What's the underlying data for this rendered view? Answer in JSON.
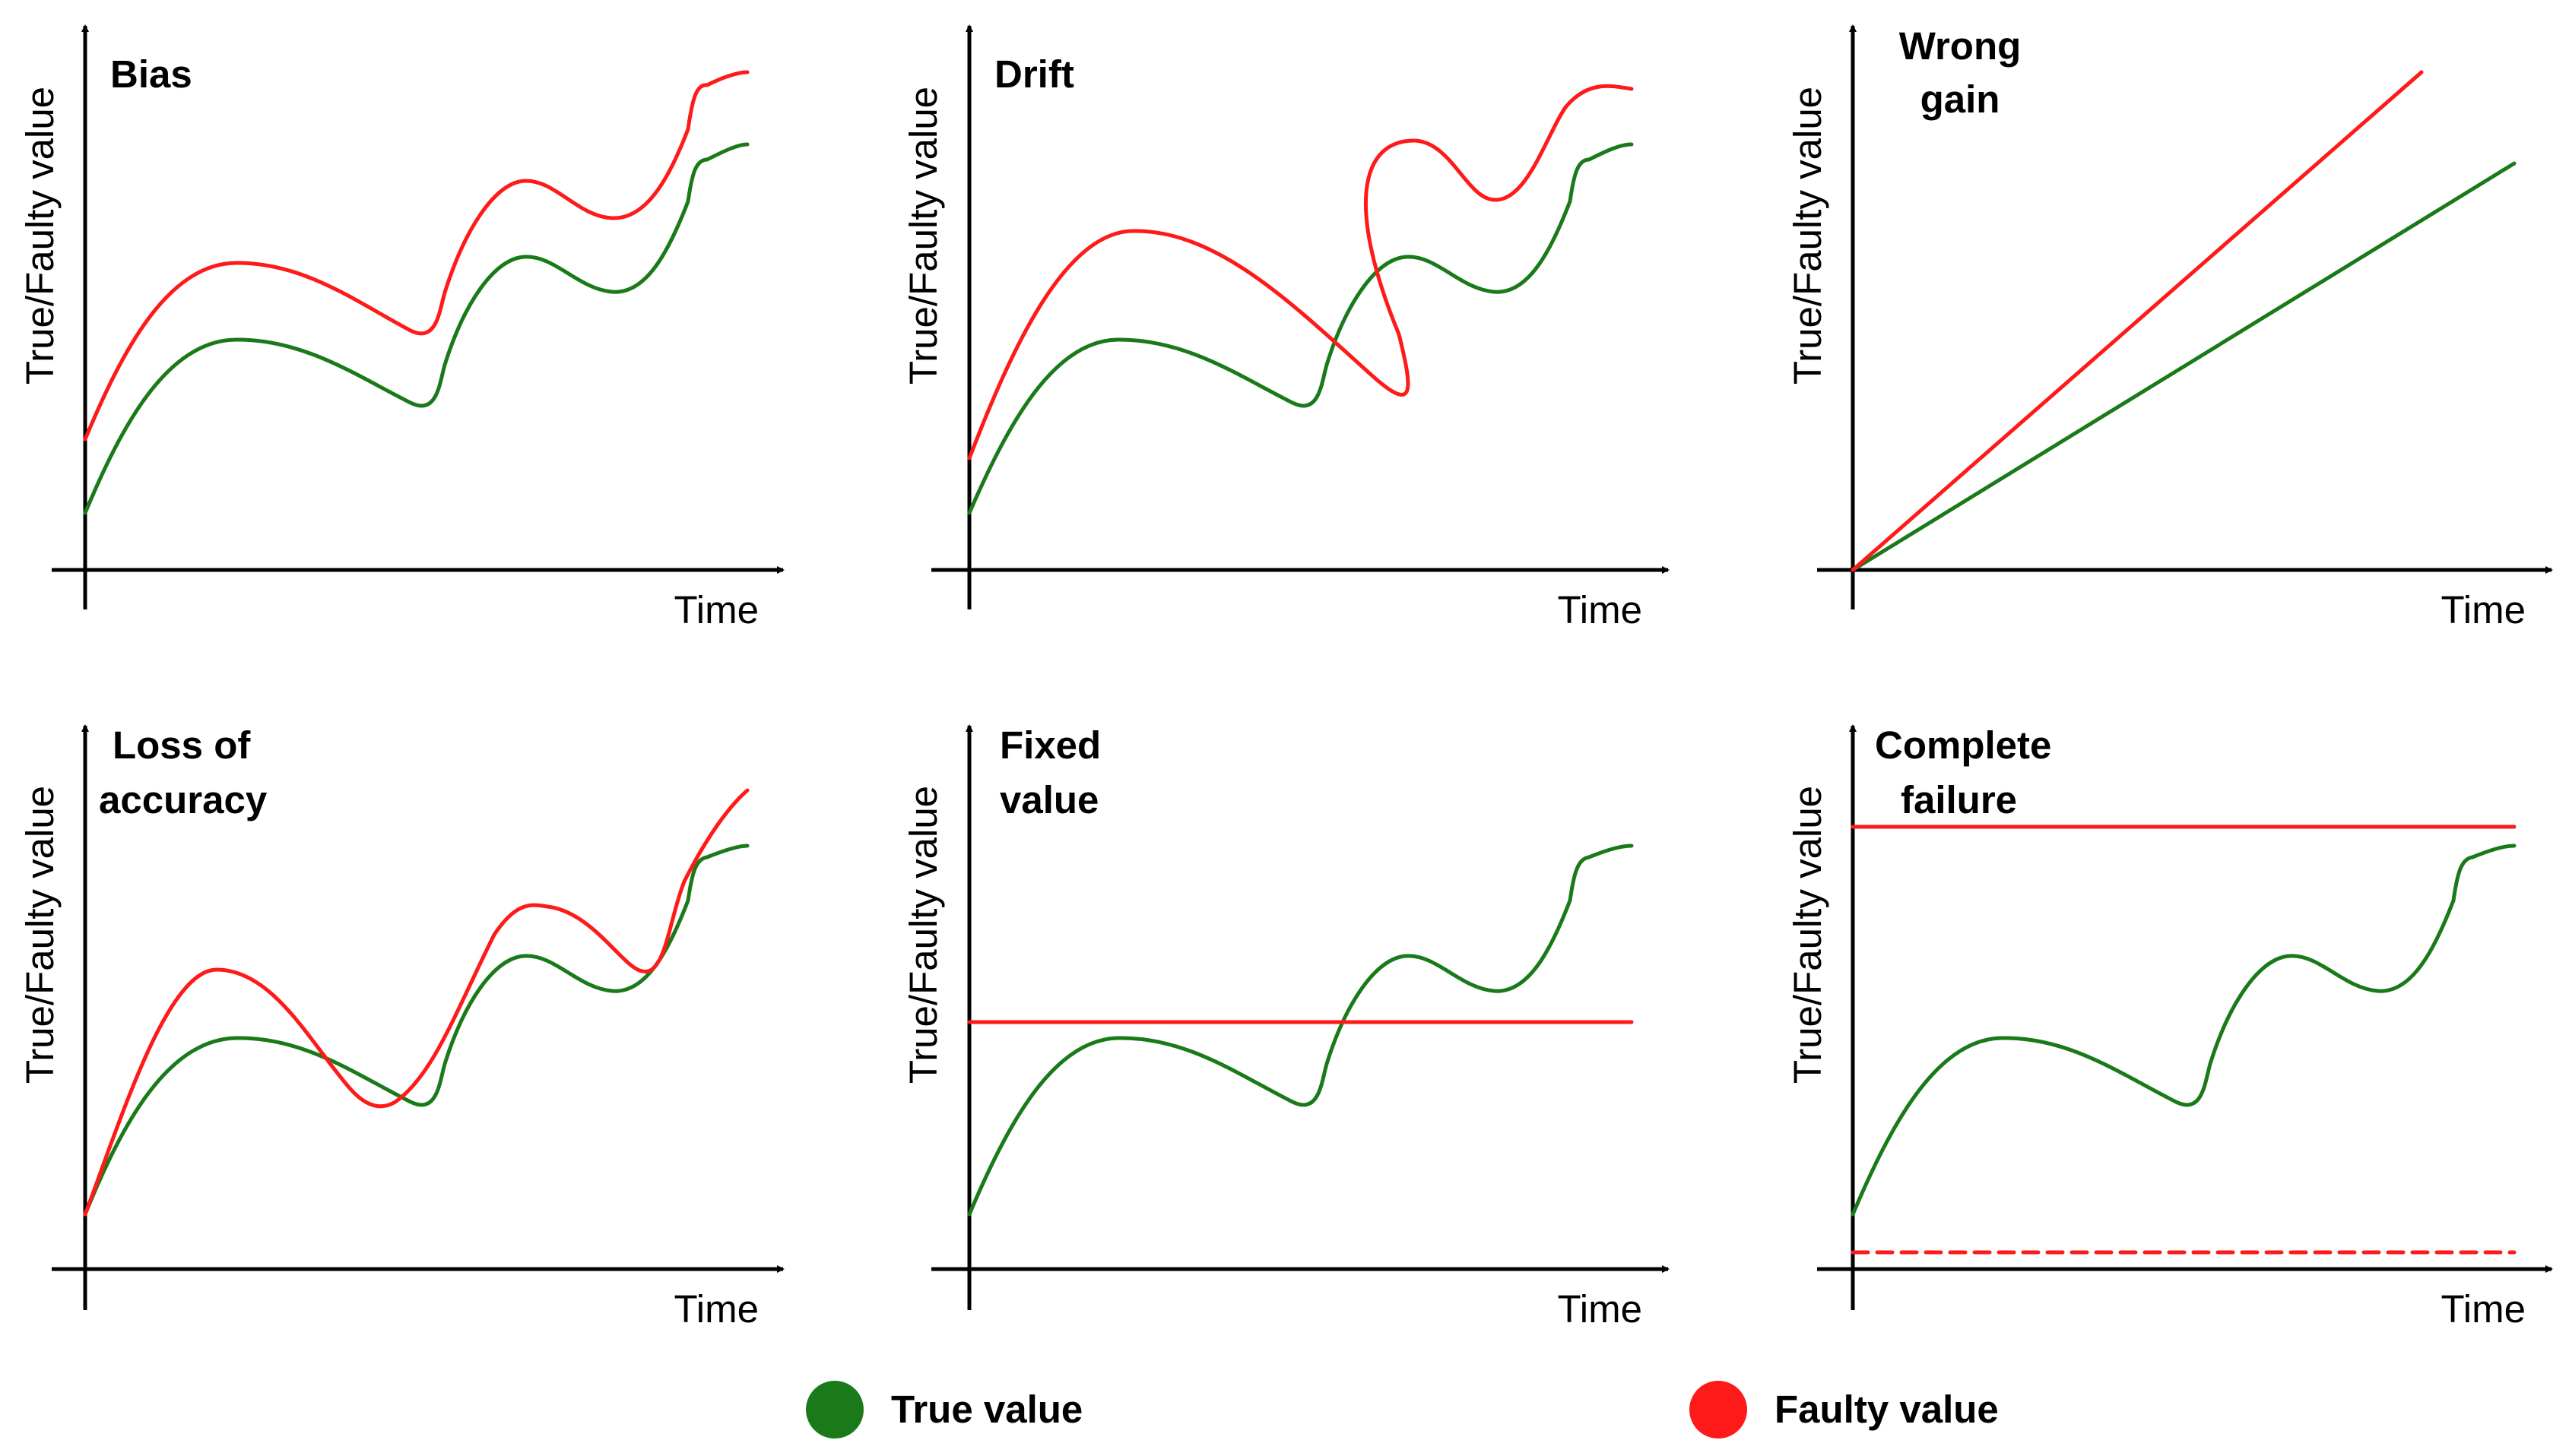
{
  "colors": {
    "true": "#1a7a1a",
    "faulty": "#ff1a1a",
    "axis": "#000000"
  },
  "axis": {
    "y_label": "True/Faulty value",
    "x_label": "Time"
  },
  "panels": [
    {
      "title_lines": [
        "Bias"
      ]
    },
    {
      "title_lines": [
        "Drift"
      ]
    },
    {
      "title_lines": [
        "Wrong",
        "gain"
      ]
    },
    {
      "title_lines": [
        "Loss of",
        "accuracy"
      ]
    },
    {
      "title_lines": [
        "Fixed",
        "value"
      ]
    },
    {
      "title_lines": [
        "Complete",
        "failure"
      ]
    }
  ],
  "legend": {
    "true_label": "True value",
    "faulty_label": "Faulty value",
    "true_icon": "green-circle-marker",
    "faulty_icon": "red-circle-marker"
  }
}
